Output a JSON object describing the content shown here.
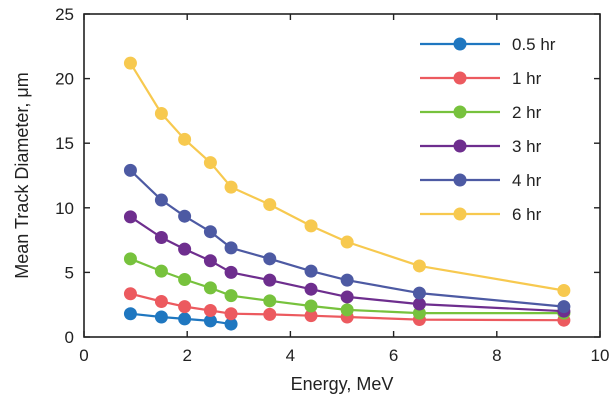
{
  "chart_data": {
    "type": "line",
    "xlabel": "Energy, MeV",
    "ylabel": "Mean Track Diameter,   μm",
    "xlim": [
      0,
      10
    ],
    "ylim": [
      0,
      25
    ],
    "xticks": [
      0,
      2,
      4,
      6,
      8,
      10
    ],
    "yticks": [
      0,
      5,
      10,
      15,
      20,
      25
    ],
    "grid": false,
    "legend_position": "top-right",
    "series": [
      {
        "name": "0.5 hr",
        "color": "#1f77c0",
        "x": [
          0.9,
          1.5,
          1.95,
          2.45,
          2.85
        ],
        "y": [
          1.8,
          1.55,
          1.4,
          1.25,
          1.0
        ]
      },
      {
        "name": "1 hr",
        "color": "#ec5a5f",
        "x": [
          0.9,
          1.5,
          1.95,
          2.45,
          2.85,
          3.6,
          4.4,
          5.1,
          6.5,
          9.3
        ],
        "y": [
          3.35,
          2.75,
          2.35,
          2.05,
          1.8,
          1.75,
          1.65,
          1.55,
          1.35,
          1.3
        ]
      },
      {
        "name": "2 hr",
        "color": "#77c23d",
        "x": [
          0.9,
          1.5,
          1.95,
          2.45,
          2.85,
          3.6,
          4.4,
          5.1,
          6.5,
          9.3
        ],
        "y": [
          6.05,
          5.1,
          4.45,
          3.8,
          3.2,
          2.8,
          2.4,
          2.1,
          1.85,
          1.85
        ]
      },
      {
        "name": "3 hr",
        "color": "#6e2e8e",
        "x": [
          0.9,
          1.5,
          1.95,
          2.45,
          2.85,
          3.6,
          4.4,
          5.1,
          6.5,
          9.3
        ],
        "y": [
          9.3,
          7.7,
          6.8,
          5.9,
          5.0,
          4.4,
          3.7,
          3.1,
          2.55,
          2.0
        ]
      },
      {
        "name": "4 hr",
        "color": "#4d5aa3",
        "x": [
          0.9,
          1.5,
          1.95,
          2.45,
          2.85,
          3.6,
          4.4,
          5.1,
          6.5,
          9.3
        ],
        "y": [
          12.9,
          10.6,
          9.35,
          8.15,
          6.9,
          6.05,
          5.1,
          4.4,
          3.4,
          2.35
        ]
      },
      {
        "name": "6 hr",
        "color": "#f7c94f",
        "x": [
          0.9,
          1.5,
          1.95,
          2.45,
          2.85,
          3.6,
          4.4,
          5.1,
          6.5,
          9.3
        ],
        "y": [
          21.2,
          17.3,
          15.3,
          13.5,
          11.6,
          10.25,
          8.6,
          7.35,
          5.5,
          3.6
        ]
      }
    ]
  }
}
